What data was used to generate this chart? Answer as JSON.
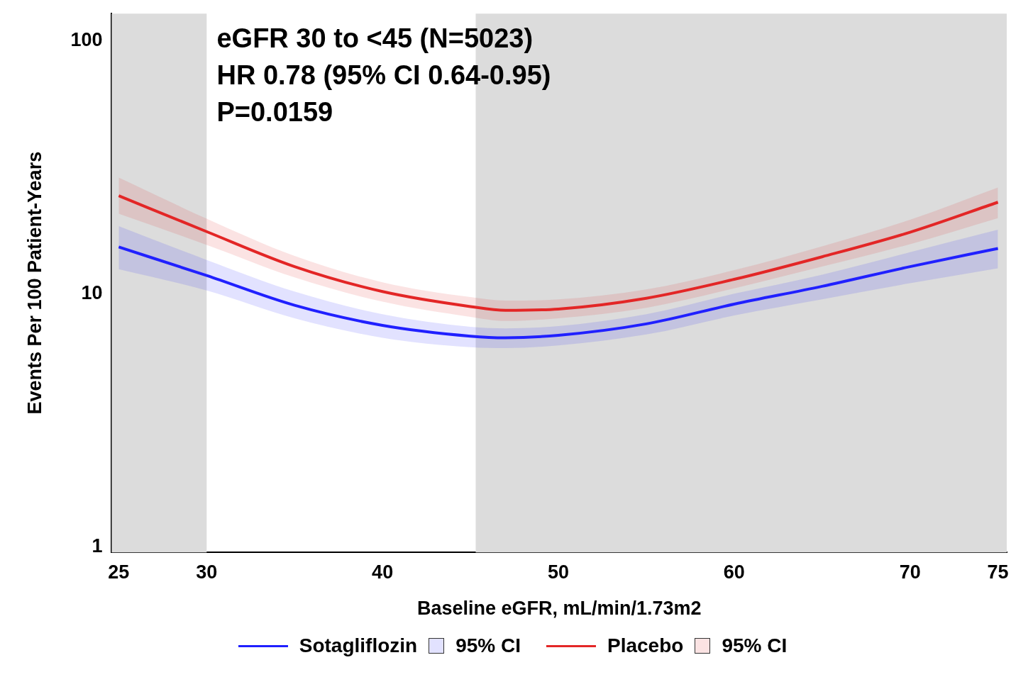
{
  "chart_data": {
    "type": "line",
    "xlabel": "Baseline eGFR, mL/min/1.73m2",
    "ylabel": "Events Per 100 Patient-Years",
    "annotations": [
      "eGFR 30 to <45 (N=5023)",
      "HR 0.78 (95% CI 0.64-0.95)",
      "P=0.0159",
      "95% CI",
      "95% CI"
    ],
    "x": [
      25,
      30,
      35,
      40,
      45,
      47,
      50,
      55,
      60,
      65,
      70,
      75
    ],
    "series": [
      {
        "name": "Sotagliflozin",
        "color": "#2020ff",
        "values": [
          15.3,
          11.8,
          9.0,
          7.5,
          6.8,
          6.7,
          6.85,
          7.6,
          9.1,
          10.7,
          12.8,
          15.1
        ],
        "lower": [
          12.5,
          10.3,
          8.0,
          6.7,
          6.15,
          6.1,
          6.25,
          6.9,
          8.2,
          9.5,
          11.0,
          12.6
        ],
        "upper": [
          18.5,
          13.6,
          10.2,
          8.3,
          7.4,
          7.3,
          7.45,
          8.3,
          10.0,
          11.9,
          14.6,
          17.9
        ]
      },
      {
        "name": "Placebo",
        "color": "#e32626",
        "values": [
          24.4,
          17.6,
          12.8,
          10.2,
          8.9,
          8.6,
          8.7,
          9.6,
          11.4,
          14.0,
          17.5,
          23.0
        ],
        "lower": [
          20.7,
          15.6,
          11.6,
          9.3,
          8.1,
          7.8,
          8.0,
          8.8,
          10.5,
          12.8,
          15.7,
          19.9
        ],
        "upper": [
          28.8,
          19.8,
          14.1,
          11.1,
          9.7,
          9.4,
          9.5,
          10.4,
          12.4,
          15.4,
          19.6,
          26.3
        ]
      }
    ],
    "log": "y",
    "xlim": [
      24.6,
      75.5
    ],
    "ylim": [
      0.95,
      128
    ],
    "xticks": [
      25,
      30,
      40,
      50,
      60,
      70,
      75
    ],
    "yticks": [
      1,
      10,
      100
    ],
    "bands": [
      {
        "axis": "x",
        "from": 24.6,
        "to": 30,
        "color": "#dcdcdc"
      },
      {
        "axis": "x",
        "from": 45.3,
        "to": 75.5,
        "color": "#dcdcdc"
      }
    ],
    "legend": "bottom",
    "grid": false,
    "marker": "none",
    "line_style": "solid"
  }
}
